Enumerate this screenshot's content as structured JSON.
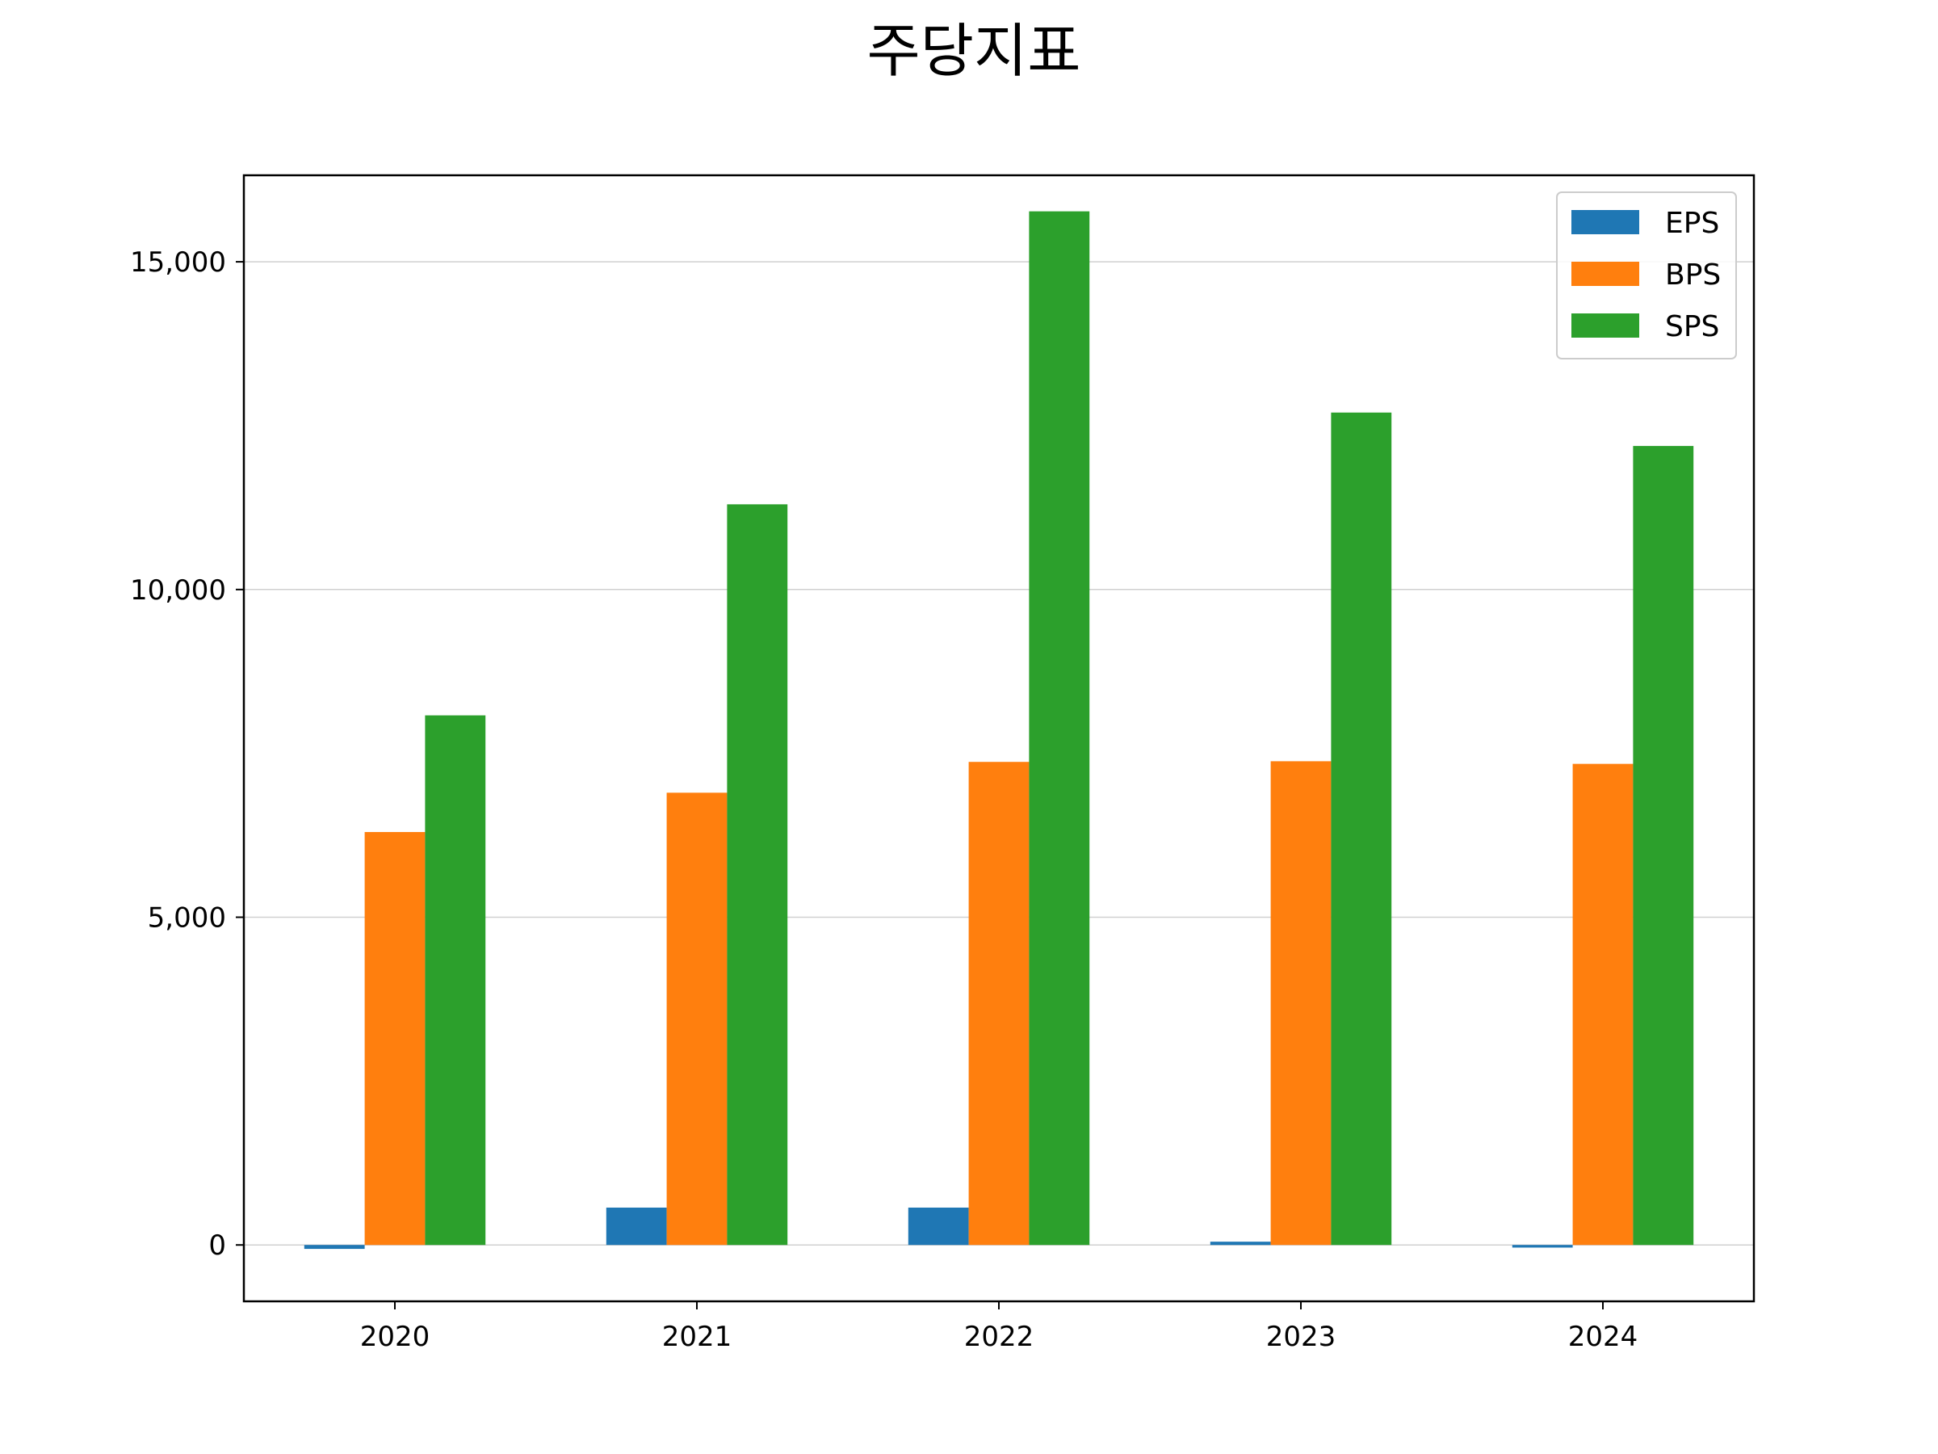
{
  "chart_data": {
    "type": "bar",
    "title": "주당지표",
    "xlabel": "",
    "ylabel": "",
    "categories": [
      "2020",
      "2021",
      "2022",
      "2023",
      "2024"
    ],
    "series": [
      {
        "name": "EPS",
        "color": "#1f77b4",
        "values": [
          -60,
          570,
          570,
          50,
          -40
        ]
      },
      {
        "name": "BPS",
        "color": "#ff7f0e",
        "values": [
          6300,
          6900,
          7370,
          7380,
          7340
        ]
      },
      {
        "name": "SPS",
        "color": "#2ca02c",
        "values": [
          8080,
          11300,
          15770,
          12700,
          12190
        ]
      }
    ],
    "ylim": [
      -860,
      16320
    ],
    "yticks": [
      0,
      5000,
      10000,
      15000
    ],
    "ytick_labels": [
      "0",
      "5,000",
      "10,000",
      "15,000"
    ],
    "grid": "y",
    "legend_position": "top-right"
  }
}
